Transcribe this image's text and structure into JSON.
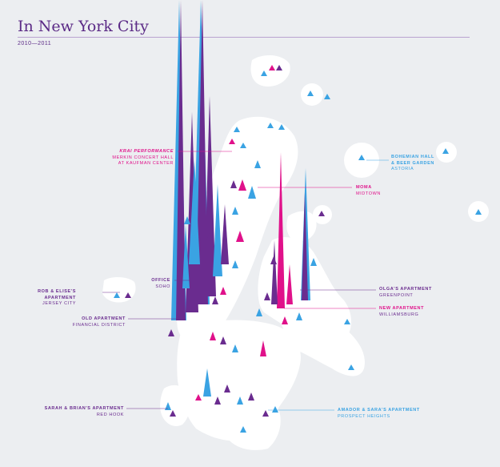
{
  "header": {
    "title": "In New York City",
    "subtitle": "2010—2011"
  },
  "colors": {
    "purple": "#6a2c8f",
    "magenta": "#e0118a",
    "blue": "#3aa3e3",
    "land": "#ffffff",
    "water": "#eceef1"
  },
  "labels": {
    "krai": {
      "name": "KRAI PERFORMANCE",
      "sub1": "MERKIN CONCERT HALL",
      "sub2": "AT KAUFMAN CENTER"
    },
    "bohemian": {
      "name1": "BOHEMIAN HALL",
      "name2": "& BEER GARDEN",
      "sub": "ASTORIA"
    },
    "moma": {
      "name": "MOMA",
      "sub": "MIDTOWN"
    },
    "office": {
      "name": "OFFICE",
      "sub": "SOHO"
    },
    "rob": {
      "name1": "ROB & ELISE'S",
      "name2": "APARTMENT",
      "sub": "JERSEY CITY"
    },
    "olga": {
      "name": "OLGA'S APARTMENT",
      "sub": "GREENPOINT"
    },
    "newapt": {
      "name": "NEW APARTMENT",
      "sub": "WILLIAMSBURG"
    },
    "oldapt": {
      "name": "OLD APARTMENT",
      "sub": "FINANCIAL DISTRICT"
    },
    "sarah": {
      "name": "SARAH & BRIAN'S APARTMENT",
      "sub": "RED HOOK"
    },
    "amador": {
      "name": "AMADOR & SARA'S APARTMENT",
      "sub": "PROSPECT HEIGHTS"
    }
  }
}
